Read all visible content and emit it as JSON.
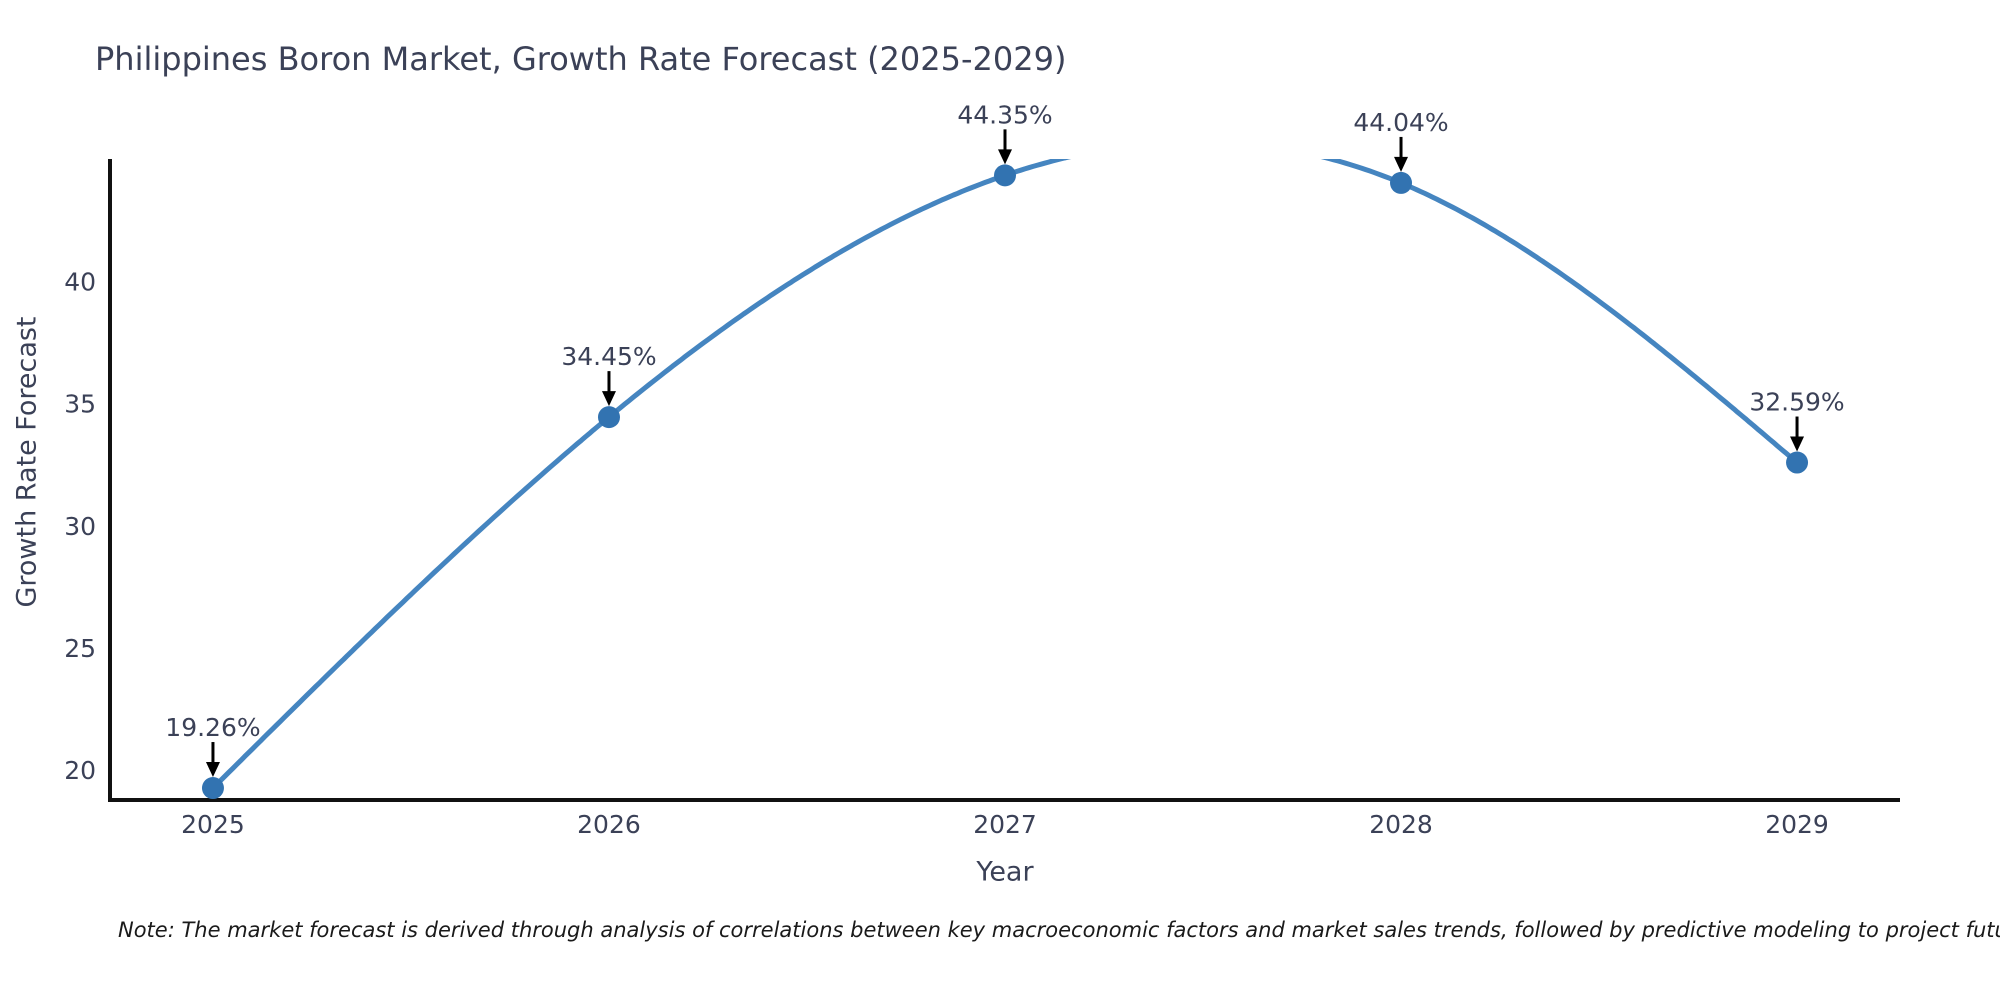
{
  "chart": {
    "title": "Philippines Boron Market, Growth Rate Forecast (2025-2029)",
    "xlabel": "Year",
    "ylabel": "Growth Rate Forecast",
    "note": "Note: The market forecast is derived through analysis of correlations between key macroeconomic factors and market sales trends, followed by predictive modeling to project future sales",
    "colors": {
      "line": "#4585c0",
      "marker": "#3273b1",
      "spine": "#111111",
      "tick_text": "#3b4157",
      "annotation_text": "#3b4157",
      "arrow": "#000000",
      "note_text": "#1a1a1a",
      "background": "#ffffff"
    }
  },
  "chart_data": {
    "type": "line",
    "title": "Philippines Boron Market, Growth Rate Forecast (2025-2029)",
    "xlabel": "Year",
    "ylabel": "Growth Rate Forecast",
    "x": [
      2025,
      2026,
      2027,
      2028,
      2029
    ],
    "values": [
      19.26,
      34.45,
      44.35,
      44.04,
      32.59
    ],
    "point_labels": [
      "19.26%",
      "34.45%",
      "44.35%",
      "44.04%",
      "32.59%"
    ],
    "x_tick_labels": [
      "2025",
      "2026",
      "2027",
      "2028",
      "2029"
    ],
    "y_ticks": [
      20,
      25,
      30,
      35,
      40
    ],
    "xlim": [
      2024.74,
      2029.26
    ],
    "ylim": [
      18.77,
      45.02
    ],
    "grid": false,
    "legend": false,
    "curve_style": "natural cubic spline through points, clipped at top of axes (gap visible between 2027 and 2028 where spline overshoots ylim)",
    "annotation_style": "percent labels above each marker with downward black arrows",
    "marker_style": "filled circle"
  }
}
